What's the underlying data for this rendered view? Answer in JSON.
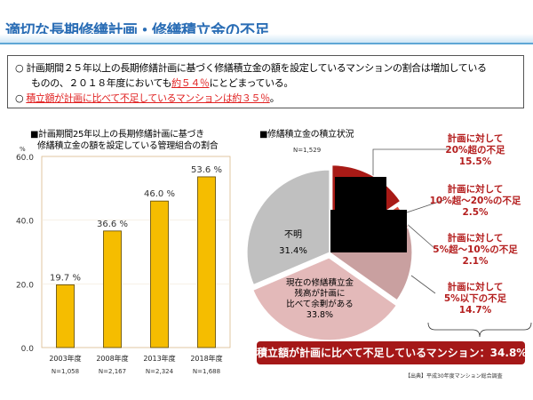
{
  "title": "適切な長期修繕計画・修繕積立金の不足",
  "summary": {
    "bullet": "○",
    "line1": "計画期間２５年以上の長期修繕計画に基づく修繕積立金の額を設定しているマンションの割合は増加している",
    "line2_pre": "ものの、２０１８年度においても",
    "line2_red": "約５４％",
    "line2_post": "にとどまっている。",
    "line3_red": "積立額が計画に比べて不足しているマンションは約３５％",
    "line3_post": "。"
  },
  "chart_data": [
    {
      "type": "bar",
      "title_line1": "■計画期間25年以上の長期修繕計画に基づき",
      "title_line2": "修繕積立金の額を設定している管理組合の割合",
      "ylabel": "%",
      "ylim": [
        0,
        60
      ],
      "yticks": [
        "0.0",
        "20.0",
        "40.0",
        "60.0"
      ],
      "categories": [
        "2003年度",
        "2008年度",
        "2013年度",
        "2018年度"
      ],
      "n_labels": [
        "N=1,058",
        "N=2,167",
        "N=2,324",
        "N=1,688"
      ],
      "values": [
        19.7,
        36.6,
        46.0,
        53.6
      ],
      "value_labels": [
        "19.7 %",
        "36.6 %",
        "46.0 %",
        "53.6 %"
      ],
      "color": "#f5bd00"
    },
    {
      "type": "pie",
      "title": "■修繕積立金の積立状況",
      "n_label": "N=1,529",
      "slices": [
        {
          "label": "計画に対して\n20%超の不足",
          "value": 15.5,
          "value_label": "15.5%",
          "color": "#a81a16",
          "exploded": true
        },
        {
          "label": "計画に対して\n10%超～20%の不足",
          "value": 2.5,
          "value_label": "2.5%",
          "color": "#dd5040"
        },
        {
          "label": "計画に対して\n5%超～10%の不足",
          "value": 2.1,
          "value_label": "2.1%",
          "color": "#d88a86"
        },
        {
          "label": "計画に対して\n5%以下の不足",
          "value": 14.7,
          "value_label": "14.7%",
          "color": "#c9a0a0"
        },
        {
          "label": "現在の修繕積立金\n残高が計画に\n比べて余剰がある",
          "value": 33.8,
          "value_label": "33.8%",
          "color": "#e3b9b9",
          "exploded": true
        },
        {
          "label": "不明",
          "value": 31.4,
          "value_label": "31.4%",
          "color": "#c0c0c0"
        }
      ]
    }
  ],
  "banner": "積立額が計画に比べて不足しているマンション：34.8%",
  "source": "【出典】平成30年度マンション総合調査"
}
